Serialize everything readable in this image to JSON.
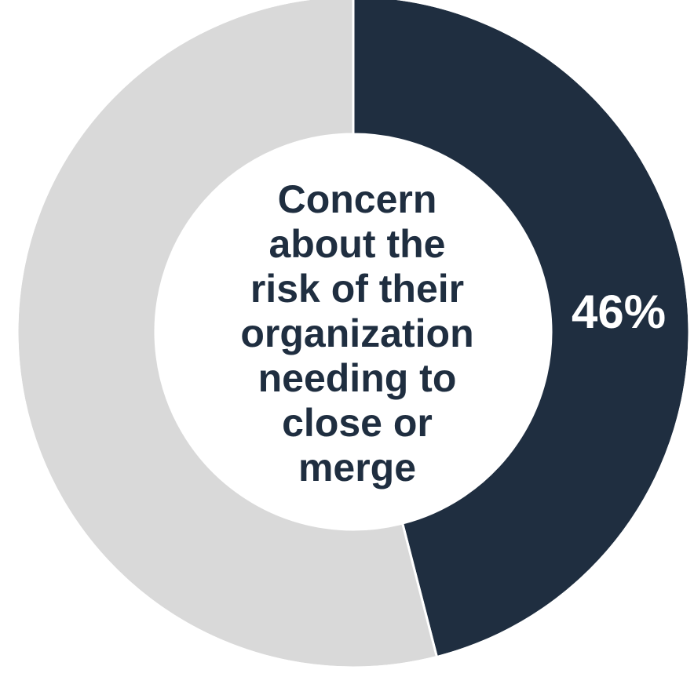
{
  "chart_data": {
    "type": "pie",
    "variant": "donut",
    "center_text_lines": [
      "Concern",
      "about the",
      "risk of their",
      "organization",
      "needing to",
      "close or",
      "merge"
    ],
    "slices": [
      {
        "label": "46%",
        "value": 46,
        "color": "#1f2e40",
        "show_label": true
      },
      {
        "label": "",
        "value": 54,
        "color": "#d9d9d9",
        "show_label": false
      }
    ],
    "label_color": "#ffffff",
    "center_text_color": "#1f2e40"
  }
}
